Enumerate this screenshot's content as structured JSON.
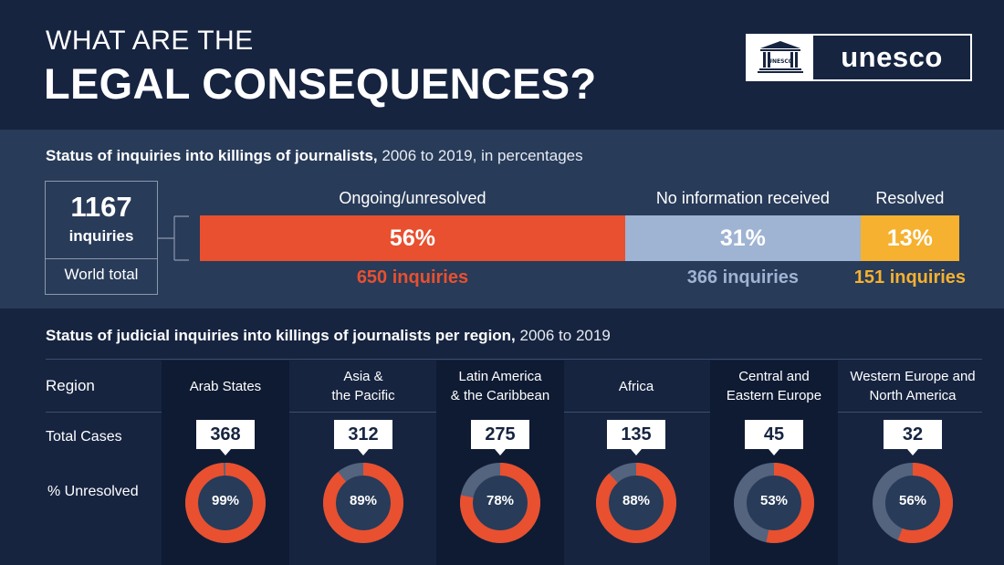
{
  "header": {
    "title_line1": "WHAT ARE THE",
    "title_line2": "LEGAL CONSEQUENCES?",
    "logo_text": "unesco",
    "logo_emblem_text": "UNESCO"
  },
  "colors": {
    "background": "#162440",
    "band": "#283b59",
    "ongoing": "#e8502f",
    "no_info": "#9fb3d3",
    "resolved": "#f5b12f",
    "donut_track": "#54637e",
    "donut_center": "#283b59"
  },
  "chart_data": [
    {
      "type": "bar",
      "title": "Status of inquiries into killings of journalists,",
      "subtitle": "2006 to 2019, in percentages",
      "total": {
        "value": "1167",
        "unit": "inquiries",
        "label": "World total"
      },
      "categories": [
        "Ongoing/unresolved",
        "No information received",
        "Resolved"
      ],
      "values": [
        56,
        31,
        13
      ],
      "value_labels": [
        "56%",
        "31%",
        "13%"
      ],
      "counts": [
        "650  inquiries",
        "366 inquiries",
        "151 inquiries"
      ],
      "stacked": true
    },
    {
      "type": "pie",
      "title": "Status of judicial inquiries into killings of journalists per region,",
      "subtitle": "2006 to 2019",
      "row_labels": {
        "region": "Region",
        "total": "Total Cases",
        "unresolved": "% Unresolved"
      },
      "regions": [
        {
          "name_line1": "Arab States",
          "name_line2": "",
          "total": "368",
          "unresolved": 99,
          "unresolved_label": "99%"
        },
        {
          "name_line1": "Asia &",
          "name_line2": "the Pacific",
          "total": "312",
          "unresolved": 89,
          "unresolved_label": "89%"
        },
        {
          "name_line1": "Latin America",
          "name_line2": "& the Caribbean",
          "total": "275",
          "unresolved": 78,
          "unresolved_label": "78%"
        },
        {
          "name_line1": "Africa",
          "name_line2": "",
          "total": "135",
          "unresolved": 88,
          "unresolved_label": "88%"
        },
        {
          "name_line1": "Central and",
          "name_line2": "Eastern Europe",
          "total": "45",
          "unresolved": 53,
          "unresolved_label": "53%"
        },
        {
          "name_line1": "Western Europe and",
          "name_line2": "North America",
          "total": "32",
          "unresolved": 56,
          "unresolved_label": "56%"
        }
      ]
    }
  ]
}
